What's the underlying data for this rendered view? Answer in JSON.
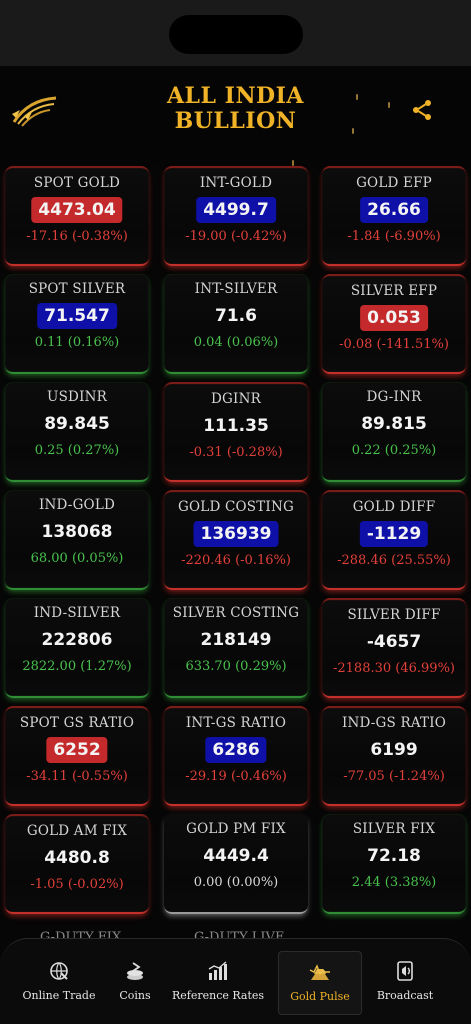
{
  "header": {
    "title_line1": "ALL INDIA",
    "title_line2": "BULLION",
    "logo_icon": "bullion-logo-icon",
    "share_icon": "share-icon"
  },
  "colors": {
    "accent_gold": "#f0b327",
    "up_green": "#49c24d",
    "down_red": "#e2403a",
    "badge_red": "#c42a2b",
    "badge_blue": "#0e10a8"
  },
  "cards": [
    {
      "label": "SPOT GOLD",
      "value": "4473.04",
      "change": "-17.16 (-0.38%)",
      "badge": "red",
      "trend": "neg",
      "border": "red"
    },
    {
      "label": "INT-GOLD",
      "value": "4499.7",
      "change": "-19.00 (-0.42%)",
      "badge": "blue",
      "trend": "neg",
      "border": "red"
    },
    {
      "label": "GOLD EFP",
      "value": "26.66",
      "change": "-1.84 (-6.90%)",
      "badge": "blue",
      "trend": "neg",
      "border": "red"
    },
    {
      "label": "SPOT SILVER",
      "value": "71.547",
      "change": "0.11 (0.16%)",
      "badge": "blue",
      "trend": "pos",
      "border": "green"
    },
    {
      "label": "INT-SILVER",
      "value": "71.6",
      "change": "0.04 (0.06%)",
      "badge": "none",
      "trend": "pos",
      "border": "green"
    },
    {
      "label": "SILVER EFP",
      "value": "0.053",
      "change": "-0.08 (-141.51%)",
      "badge": "red",
      "trend": "neg",
      "border": "red"
    },
    {
      "label": "USDINR",
      "value": "89.845",
      "change": "0.25 (0.27%)",
      "badge": "none",
      "trend": "pos",
      "border": "green"
    },
    {
      "label": "DGINR",
      "value": "111.35",
      "change": "-0.31 (-0.28%)",
      "badge": "none",
      "trend": "neg",
      "border": "red"
    },
    {
      "label": "DG-INR",
      "value": "89.815",
      "change": "0.22 (0.25%)",
      "badge": "none",
      "trend": "pos",
      "border": "green"
    },
    {
      "label": "IND-GOLD",
      "value": "138068",
      "change": "68.00 (0.05%)",
      "badge": "none",
      "trend": "pos",
      "border": "green"
    },
    {
      "label": "GOLD COSTING",
      "value": "136939",
      "change": "-220.46 (-0.16%)",
      "badge": "blue",
      "trend": "neg",
      "border": "red"
    },
    {
      "label": "GOLD DIFF",
      "value": "-1129",
      "change": "-288.46 (25.55%)",
      "badge": "blue",
      "trend": "neg",
      "border": "red"
    },
    {
      "label": "IND-SILVER",
      "value": "222806",
      "change": "2822.00 (1.27%)",
      "badge": "none",
      "trend": "pos",
      "border": "green"
    },
    {
      "label": "SILVER COSTING",
      "value": "218149",
      "change": "633.70 (0.29%)",
      "badge": "none",
      "trend": "pos",
      "border": "green"
    },
    {
      "label": "SILVER DIFF",
      "value": "-4657",
      "change": "-2188.30 (46.99%)",
      "badge": "none",
      "trend": "neg",
      "border": "red"
    },
    {
      "label": "SPOT GS RATIO",
      "value": "6252",
      "change": "-34.11 (-0.55%)",
      "badge": "red",
      "trend": "neg",
      "border": "red"
    },
    {
      "label": "INT-GS RATIO",
      "value": "6286",
      "change": "-29.19 (-0.46%)",
      "badge": "blue",
      "trend": "neg",
      "border": "red"
    },
    {
      "label": "IND-GS RATIO",
      "value": "6199",
      "change": "-77.05 (-1.24%)",
      "badge": "none",
      "trend": "neg",
      "border": "red"
    },
    {
      "label": "GOLD AM FIX",
      "value": "4480.8",
      "change": "-1.05 (-0.02%)",
      "badge": "none",
      "trend": "neg",
      "border": "red"
    },
    {
      "label": "GOLD PM FIX",
      "value": "4449.4",
      "change": "0.00 (0.00%)",
      "badge": "none",
      "trend": "neu",
      "border": "white"
    },
    {
      "label": "SILVER FIX",
      "value": "72.18",
      "change": "2.44 (3.38%)",
      "badge": "none",
      "trend": "pos",
      "border": "green"
    }
  ],
  "peek_labels": [
    "G-DUTY FIX",
    "G-DUTY LIVE"
  ],
  "nav": [
    {
      "label": "Online Trade",
      "icon": "online-trade-icon",
      "active": false
    },
    {
      "label": "Coins",
      "icon": "coins-icon",
      "active": false
    },
    {
      "label": "Reference Rates",
      "icon": "reference-rates-icon",
      "active": false
    },
    {
      "label": "Gold Pulse",
      "icon": "gold-pulse-icon",
      "active": true
    },
    {
      "label": "Broadcast",
      "icon": "broadcast-icon",
      "active": false
    }
  ]
}
